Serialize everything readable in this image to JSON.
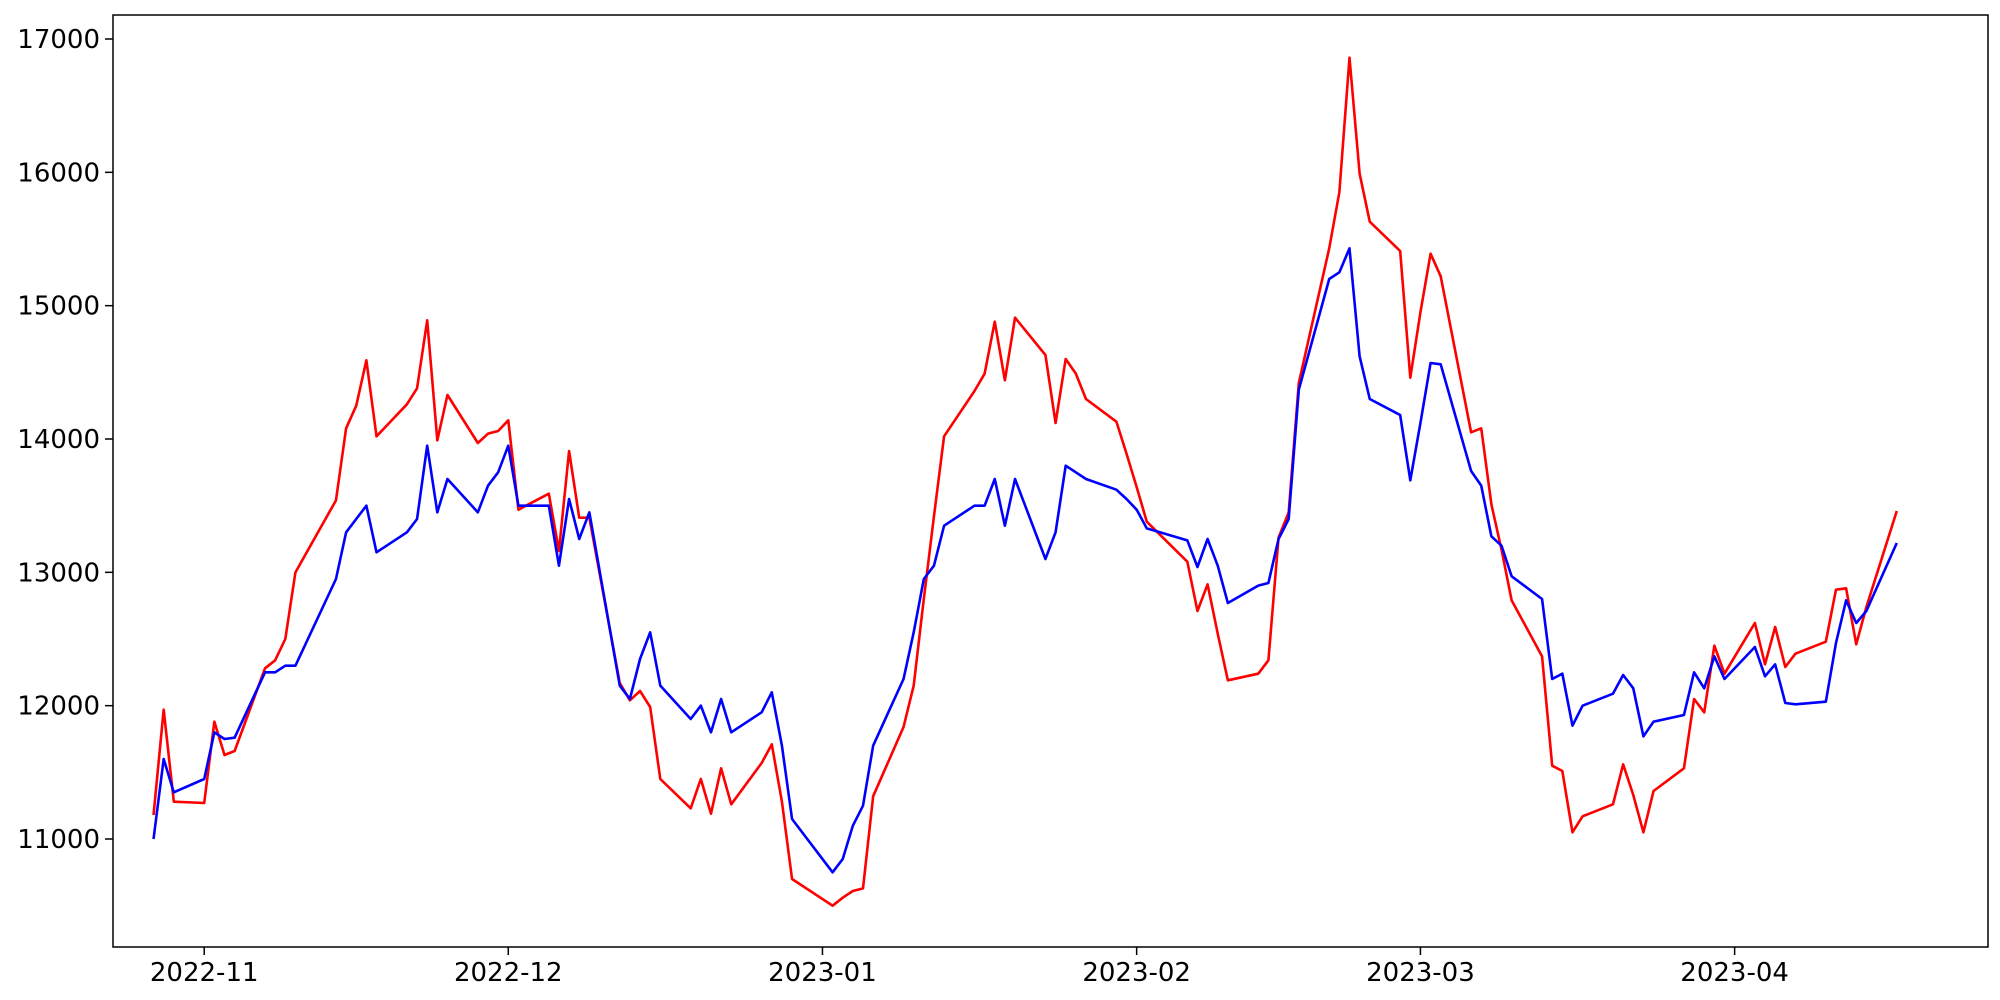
{
  "chart_data": {
    "type": "line",
    "title": "",
    "xlabel": "",
    "ylabel": "",
    "grid": false,
    "xlim": [
      "2022-10-23",
      "2023-04-26"
    ],
    "ylim": [
      10190,
      17180
    ],
    "xticks": [
      {
        "date": "2022-11-01",
        "label": "2022-11"
      },
      {
        "date": "2022-12-01",
        "label": "2022-12"
      },
      {
        "date": "2023-01-01",
        "label": "2023-01"
      },
      {
        "date": "2023-02-01",
        "label": "2023-02"
      },
      {
        "date": "2023-03-01",
        "label": "2023-03"
      },
      {
        "date": "2023-04-01",
        "label": "2023-04"
      }
    ],
    "yticks": [
      {
        "value": 11000,
        "label": "11000"
      },
      {
        "value": 12000,
        "label": "12000"
      },
      {
        "value": 13000,
        "label": "13000"
      },
      {
        "value": 14000,
        "label": "14000"
      },
      {
        "value": 15000,
        "label": "15000"
      },
      {
        "value": 16000,
        "label": "16000"
      },
      {
        "value": 17000,
        "label": "17000"
      }
    ],
    "series": [
      {
        "color": "#ff0000",
        "x": [
          "2022-10-27",
          "2022-10-28",
          "2022-10-29",
          "2022-11-01",
          "2022-11-02",
          "2022-11-03",
          "2022-11-04",
          "2022-11-07",
          "2022-11-08",
          "2022-11-09",
          "2022-11-10",
          "2022-11-14",
          "2022-11-15",
          "2022-11-16",
          "2022-11-17",
          "2022-11-18",
          "2022-11-21",
          "2022-11-22",
          "2022-11-23",
          "2022-11-24",
          "2022-11-25",
          "2022-11-28",
          "2022-11-29",
          "2022-11-30",
          "2022-12-01",
          "2022-12-02",
          "2022-12-05",
          "2022-12-06",
          "2022-12-07",
          "2022-12-08",
          "2022-12-09",
          "2022-12-12",
          "2022-12-13",
          "2022-12-14",
          "2022-12-15",
          "2022-12-16",
          "2022-12-19",
          "2022-12-20",
          "2022-12-21",
          "2022-12-22",
          "2022-12-23",
          "2022-12-26",
          "2022-12-27",
          "2022-12-28",
          "2022-12-29",
          "2023-01-02",
          "2023-01-03",
          "2023-01-04",
          "2023-01-05",
          "2023-01-06",
          "2023-01-09",
          "2023-01-10",
          "2023-01-11",
          "2023-01-12",
          "2023-01-13",
          "2023-01-16",
          "2023-01-17",
          "2023-01-18",
          "2023-01-19",
          "2023-01-20",
          "2023-01-23",
          "2023-01-24",
          "2023-01-25",
          "2023-01-26",
          "2023-01-27",
          "2023-01-30",
          "2023-01-31",
          "2023-02-01",
          "2023-02-02",
          "2023-02-06",
          "2023-02-07",
          "2023-02-08",
          "2023-02-09",
          "2023-02-10",
          "2023-02-13",
          "2023-02-14",
          "2023-02-15",
          "2023-02-16",
          "2023-02-17",
          "2023-02-20",
          "2023-02-21",
          "2023-02-22",
          "2023-02-23",
          "2023-02-24",
          "2023-02-27",
          "2023-02-28",
          "2023-03-01",
          "2023-03-02",
          "2023-03-03",
          "2023-03-06",
          "2023-03-07",
          "2023-03-08",
          "2023-03-09",
          "2023-03-10",
          "2023-03-13",
          "2023-03-14",
          "2023-03-15",
          "2023-03-16",
          "2023-03-17",
          "2023-03-20",
          "2023-03-21",
          "2023-03-22",
          "2023-03-23",
          "2023-03-24",
          "2023-03-27",
          "2023-03-28",
          "2023-03-29",
          "2023-03-30",
          "2023-03-31",
          "2023-04-03",
          "2023-04-04",
          "2023-04-05",
          "2023-04-06",
          "2023-04-07",
          "2023-04-10",
          "2023-04-11",
          "2023-04-12",
          "2023-04-13",
          "2023-04-14",
          "2023-04-17"
        ],
        "y": [
          11180,
          11970,
          11280,
          11270,
          11880,
          11630,
          11660,
          12280,
          12340,
          12500,
          13000,
          13540,
          14080,
          14250,
          14590,
          14020,
          14260,
          14380,
          14890,
          13990,
          14330,
          13970,
          14040,
          14060,
          14140,
          13470,
          13590,
          13160,
          13910,
          13410,
          13410,
          12170,
          12040,
          12110,
          11990,
          11450,
          11230,
          11450,
          11190,
          11530,
          11260,
          11570,
          11710,
          11280,
          10700,
          10500,
          10560,
          10610,
          10630,
          11320,
          11840,
          12150,
          12800,
          13420,
          14020,
          14360,
          14490,
          14880,
          14440,
          14910,
          14630,
          14120,
          14600,
          14490,
          14300,
          14130,
          13890,
          13640,
          13380,
          13080,
          12710,
          12910,
          12540,
          12190,
          12240,
          12340,
          13260,
          13450,
          14420,
          15430,
          15850,
          16860,
          15990,
          15630,
          15410,
          14460,
          14950,
          15390,
          15220,
          14050,
          14080,
          13510,
          13170,
          12790,
          12370,
          11550,
          11510,
          11050,
          11170,
          11260,
          11560,
          11330,
          11050,
          11360,
          11530,
          12050,
          11950,
          12450,
          12240,
          12620,
          12310,
          12590,
          12290,
          12390,
          12480,
          12870,
          12880,
          12460,
          12740,
          13460
        ]
      },
      {
        "color": "#0000ff",
        "x": [
          "2022-10-27",
          "2022-10-28",
          "2022-10-29",
          "2022-11-01",
          "2022-11-02",
          "2022-11-03",
          "2022-11-04",
          "2022-11-07",
          "2022-11-08",
          "2022-11-09",
          "2022-11-10",
          "2022-11-14",
          "2022-11-15",
          "2022-11-16",
          "2022-11-17",
          "2022-11-18",
          "2022-11-21",
          "2022-11-22",
          "2022-11-23",
          "2022-11-24",
          "2022-11-25",
          "2022-11-28",
          "2022-11-29",
          "2022-11-30",
          "2022-12-01",
          "2022-12-02",
          "2022-12-05",
          "2022-12-06",
          "2022-12-07",
          "2022-12-08",
          "2022-12-09",
          "2022-12-12",
          "2022-12-13",
          "2022-12-14",
          "2022-12-15",
          "2022-12-16",
          "2022-12-19",
          "2022-12-20",
          "2022-12-21",
          "2022-12-22",
          "2022-12-23",
          "2022-12-26",
          "2022-12-27",
          "2022-12-28",
          "2022-12-29",
          "2023-01-02",
          "2023-01-03",
          "2023-01-04",
          "2023-01-05",
          "2023-01-06",
          "2023-01-09",
          "2023-01-10",
          "2023-01-11",
          "2023-01-12",
          "2023-01-13",
          "2023-01-16",
          "2023-01-17",
          "2023-01-18",
          "2023-01-19",
          "2023-01-20",
          "2023-01-23",
          "2023-01-24",
          "2023-01-25",
          "2023-01-26",
          "2023-01-27",
          "2023-01-30",
          "2023-01-31",
          "2023-02-01",
          "2023-02-02",
          "2023-02-06",
          "2023-02-07",
          "2023-02-08",
          "2023-02-09",
          "2023-02-10",
          "2023-02-13",
          "2023-02-14",
          "2023-02-15",
          "2023-02-16",
          "2023-02-17",
          "2023-02-20",
          "2023-02-21",
          "2023-02-22",
          "2023-02-23",
          "2023-02-24",
          "2023-02-27",
          "2023-02-28",
          "2023-03-01",
          "2023-03-02",
          "2023-03-03",
          "2023-03-06",
          "2023-03-07",
          "2023-03-08",
          "2023-03-09",
          "2023-03-10",
          "2023-03-13",
          "2023-03-14",
          "2023-03-15",
          "2023-03-16",
          "2023-03-17",
          "2023-03-20",
          "2023-03-21",
          "2023-03-22",
          "2023-03-23",
          "2023-03-24",
          "2023-03-27",
          "2023-03-28",
          "2023-03-29",
          "2023-03-30",
          "2023-03-31",
          "2023-04-03",
          "2023-04-04",
          "2023-04-05",
          "2023-04-06",
          "2023-04-07",
          "2023-04-10",
          "2023-04-11",
          "2023-04-12",
          "2023-04-13",
          "2023-04-14",
          "2023-04-17"
        ],
        "y": [
          11000,
          11600,
          11350,
          11450,
          11800,
          11750,
          11760,
          12250,
          12250,
          12300,
          12300,
          12950,
          13300,
          13400,
          13500,
          13150,
          13300,
          13400,
          13950,
          13450,
          13700,
          13450,
          13650,
          13750,
          13950,
          13500,
          13500,
          13050,
          13550,
          13250,
          13450,
          12150,
          12050,
          12350,
          12550,
          12150,
          11900,
          12000,
          11800,
          12050,
          11800,
          11950,
          12100,
          11700,
          11150,
          10750,
          10850,
          11100,
          11250,
          11700,
          12200,
          12550,
          12950,
          13050,
          13350,
          13500,
          13500,
          13700,
          13350,
          13700,
          13100,
          13300,
          13800,
          13750,
          13700,
          13620,
          13550,
          13470,
          13330,
          13240,
          13040,
          13250,
          13050,
          12770,
          12900,
          12920,
          13250,
          13400,
          14370,
          15200,
          15250,
          15430,
          14620,
          14300,
          14180,
          13690,
          14120,
          14570,
          14560,
          13760,
          13650,
          13270,
          13200,
          12970,
          12800,
          12200,
          12240,
          11850,
          12000,
          12090,
          12230,
          12130,
          11770,
          11880,
          11930,
          12250,
          12130,
          12370,
          12200,
          12440,
          12220,
          12310,
          12020,
          12010,
          12030,
          12470,
          12790,
          12620,
          12710,
          13220
        ]
      }
    ]
  }
}
